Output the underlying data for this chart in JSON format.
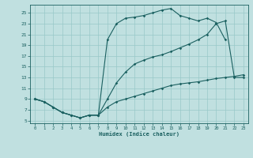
{
  "xlabel": "Humidex (Indice chaleur)",
  "bg_color": "#c0e0e0",
  "grid_color": "#98c8c8",
  "line_color": "#1a6060",
  "xlim": [
    -0.5,
    23.5
  ],
  "ylim": [
    4.5,
    26.5
  ],
  "xticks": [
    0,
    1,
    2,
    3,
    4,
    5,
    6,
    7,
    8,
    9,
    10,
    11,
    12,
    13,
    14,
    15,
    16,
    17,
    18,
    19,
    20,
    21,
    22,
    23
  ],
  "yticks": [
    5,
    7,
    9,
    11,
    13,
    15,
    17,
    19,
    21,
    23,
    25
  ],
  "line1_x": [
    0,
    1,
    2,
    3,
    4,
    5,
    6,
    7,
    8,
    9,
    10,
    11,
    12,
    13,
    14,
    15,
    16,
    17,
    18,
    19,
    20,
    21
  ],
  "line1_y": [
    9,
    8.5,
    7.5,
    6.5,
    6.0,
    5.5,
    6.0,
    6.0,
    20,
    23,
    24,
    24.2,
    24.5,
    25.0,
    25.5,
    25.8,
    24.5,
    24.0,
    23.5,
    24.0,
    23.2,
    20.0
  ],
  "line2_x": [
    0,
    1,
    2,
    3,
    4,
    5,
    6,
    7,
    8,
    9,
    10,
    11,
    12,
    13,
    14,
    15,
    16,
    17,
    18,
    19,
    20,
    21,
    22,
    23
  ],
  "line2_y": [
    9,
    8.5,
    7.5,
    6.5,
    6.0,
    5.5,
    6.0,
    6.0,
    9,
    12,
    14,
    15.5,
    16.2,
    16.8,
    17.2,
    17.8,
    18.5,
    19.2,
    20.0,
    21.0,
    23.0,
    23.5,
    13.0,
    13.0
  ],
  "line3_x": [
    0,
    1,
    2,
    3,
    4,
    5,
    6,
    7,
    8,
    9,
    10,
    11,
    12,
    13,
    14,
    15,
    16,
    17,
    18,
    19,
    20,
    21,
    22,
    23
  ],
  "line3_y": [
    9,
    8.5,
    7.5,
    6.5,
    6.0,
    5.5,
    6.0,
    6.0,
    7.5,
    8.5,
    9.0,
    9.5,
    10.0,
    10.5,
    11.0,
    11.5,
    11.8,
    12.0,
    12.2,
    12.5,
    12.8,
    13.0,
    13.2,
    13.5
  ]
}
